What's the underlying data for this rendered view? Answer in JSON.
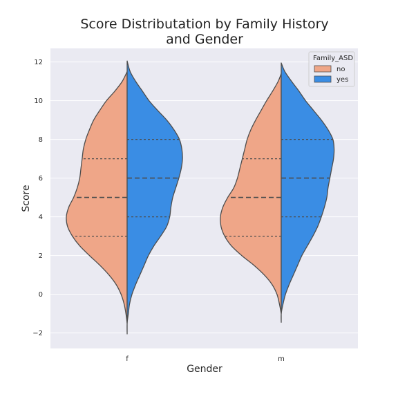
{
  "chart_data": {
    "type": "violin",
    "title": "Score Distributation by Family History\nand Gender",
    "xlabel": "Gender",
    "ylabel": "Score",
    "categories": [
      "f",
      "m"
    ],
    "ylim": [
      -2.8,
      12.7
    ],
    "yticks": [
      -2,
      0,
      2,
      4,
      6,
      8,
      10,
      12
    ],
    "ytick_labels": [
      "−2",
      "0",
      "2",
      "4",
      "6",
      "8",
      "10",
      "12"
    ],
    "grid": true,
    "split": true,
    "inner": "quartile",
    "legend": {
      "title": "Family_ASD",
      "placement": "top-right",
      "entries": [
        {
          "label": "no",
          "color": "#EFA688"
        },
        {
          "label": "yes",
          "color": "#3A8DE4"
        }
      ]
    },
    "series": [
      {
        "name": "no",
        "color": "#EFA688",
        "side": "left",
        "groups": [
          {
            "category": "f",
            "min": -1.5,
            "max": 11.5,
            "quartiles": [
              3,
              5,
              7
            ],
            "profile": [
              [
                -1.5,
                0.0
              ],
              [
                -1.0,
                0.02
              ],
              [
                -0.5,
                0.05
              ],
              [
                0.0,
                0.1
              ],
              [
                0.5,
                0.18
              ],
              [
                1.0,
                0.3
              ],
              [
                1.5,
                0.45
              ],
              [
                2.0,
                0.62
              ],
              [
                2.5,
                0.78
              ],
              [
                3.0,
                0.9
              ],
              [
                3.5,
                0.98
              ],
              [
                4.0,
                1.0
              ],
              [
                4.5,
                0.96
              ],
              [
                5.0,
                0.88
              ],
              [
                5.5,
                0.82
              ],
              [
                6.0,
                0.78
              ],
              [
                6.5,
                0.76
              ],
              [
                7.0,
                0.74
              ],
              [
                7.5,
                0.72
              ],
              [
                8.0,
                0.68
              ],
              [
                8.5,
                0.62
              ],
              [
                9.0,
                0.55
              ],
              [
                9.5,
                0.45
              ],
              [
                10.0,
                0.34
              ],
              [
                10.5,
                0.2
              ],
              [
                11.0,
                0.08
              ],
              [
                11.5,
                0.0
              ]
            ]
          },
          {
            "category": "m",
            "min": -1.0,
            "max": 11.4,
            "quartiles": [
              3,
              5,
              7
            ],
            "profile": [
              [
                -1.0,
                0.0
              ],
              [
                -0.5,
                0.03
              ],
              [
                0.0,
                0.07
              ],
              [
                0.5,
                0.15
              ],
              [
                1.0,
                0.28
              ],
              [
                1.5,
                0.45
              ],
              [
                2.0,
                0.65
              ],
              [
                2.5,
                0.82
              ],
              [
                3.0,
                0.93
              ],
              [
                3.5,
                0.99
              ],
              [
                4.0,
                1.0
              ],
              [
                4.5,
                0.96
              ],
              [
                5.0,
                0.88
              ],
              [
                5.5,
                0.78
              ],
              [
                6.0,
                0.72
              ],
              [
                6.5,
                0.68
              ],
              [
                7.0,
                0.64
              ],
              [
                7.5,
                0.6
              ],
              [
                8.0,
                0.56
              ],
              [
                8.5,
                0.5
              ],
              [
                9.0,
                0.42
              ],
              [
                9.5,
                0.33
              ],
              [
                10.0,
                0.24
              ],
              [
                10.5,
                0.14
              ],
              [
                11.0,
                0.05
              ],
              [
                11.4,
                0.0
              ]
            ]
          }
        ]
      },
      {
        "name": "yes",
        "color": "#3A8DE4",
        "side": "right",
        "groups": [
          {
            "category": "f",
            "min": -2.05,
            "max": 12.05,
            "quartiles": [
              4,
              6,
              8
            ],
            "profile": [
              [
                -2.05,
                0.0
              ],
              [
                -1.5,
                0.0
              ],
              [
                -1.0,
                0.02
              ],
              [
                -0.5,
                0.04
              ],
              [
                0.0,
                0.08
              ],
              [
                0.5,
                0.14
              ],
              [
                1.0,
                0.21
              ],
              [
                1.5,
                0.28
              ],
              [
                2.0,
                0.35
              ],
              [
                2.5,
                0.44
              ],
              [
                3.0,
                0.55
              ],
              [
                3.5,
                0.65
              ],
              [
                4.0,
                0.7
              ],
              [
                4.5,
                0.72
              ],
              [
                5.0,
                0.75
              ],
              [
                5.5,
                0.8
              ],
              [
                6.0,
                0.85
              ],
              [
                6.5,
                0.89
              ],
              [
                7.0,
                0.91
              ],
              [
                7.5,
                0.9
              ],
              [
                8.0,
                0.86
              ],
              [
                8.5,
                0.77
              ],
              [
                9.0,
                0.65
              ],
              [
                9.5,
                0.5
              ],
              [
                10.0,
                0.36
              ],
              [
                10.5,
                0.25
              ],
              [
                11.0,
                0.14
              ],
              [
                11.5,
                0.05
              ],
              [
                12.05,
                0.0
              ]
            ]
          },
          {
            "category": "m",
            "min": -1.45,
            "max": 11.95,
            "quartiles": [
              4,
              6,
              8
            ],
            "profile": [
              [
                -1.45,
                0.0
              ],
              [
                -1.0,
                0.0
              ],
              [
                -0.5,
                0.03
              ],
              [
                0.0,
                0.07
              ],
              [
                0.5,
                0.13
              ],
              [
                1.0,
                0.2
              ],
              [
                1.5,
                0.27
              ],
              [
                2.0,
                0.34
              ],
              [
                2.5,
                0.43
              ],
              [
                3.0,
                0.52
              ],
              [
                3.5,
                0.6
              ],
              [
                4.0,
                0.66
              ],
              [
                4.5,
                0.71
              ],
              [
                5.0,
                0.75
              ],
              [
                5.5,
                0.77
              ],
              [
                6.0,
                0.8
              ],
              [
                6.5,
                0.83
              ],
              [
                7.0,
                0.86
              ],
              [
                7.5,
                0.87
              ],
              [
                8.0,
                0.85
              ],
              [
                8.5,
                0.77
              ],
              [
                9.0,
                0.66
              ],
              [
                9.5,
                0.53
              ],
              [
                10.0,
                0.4
              ],
              [
                10.5,
                0.29
              ],
              [
                11.0,
                0.17
              ],
              [
                11.5,
                0.06
              ],
              [
                11.95,
                0.0
              ]
            ]
          }
        ]
      }
    ]
  }
}
